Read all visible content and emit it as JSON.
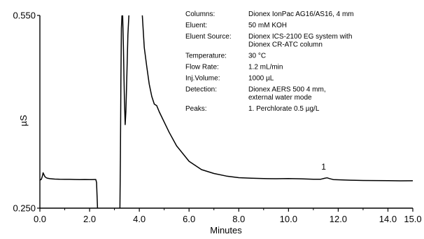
{
  "chart_data": {
    "type": "line",
    "xlabel": "Minutes",
    "ylabel": "µS",
    "xlim": [
      0.0,
      15.0
    ],
    "ylim": [
      0.25,
      0.55
    ],
    "x_ticks": [
      0.0,
      2.0,
      4.0,
      6.0,
      8.0,
      10.0,
      12.0,
      14.0,
      15.0
    ],
    "x_tick_labels": [
      "0.0",
      "2.0",
      "4.0",
      "6.0",
      "8.0",
      "10.0",
      "12.0",
      "14.0",
      "15.0"
    ],
    "y_ticks": [
      0.25,
      0.55
    ],
    "y_tick_labels": [
      "0.250",
      "0.550"
    ],
    "grid": false,
    "series": [
      {
        "color": "#000000",
        "segments": [
          {
            "x": [
              0.0,
              0.06,
              0.1,
              0.13,
              0.16,
              0.2,
              0.25,
              0.3,
              0.4,
              0.5,
              0.6,
              0.8,
              1.0,
              1.2,
              1.4,
              1.6,
              1.8,
              2.0,
              2.1,
              2.2,
              2.25,
              2.28,
              2.3,
              2.32
            ],
            "y": [
              0.2935,
              0.295,
              0.3,
              0.3051,
              0.3025,
              0.2992,
              0.2975,
              0.2966,
              0.2959,
              0.2956,
              0.2953,
              0.295,
              0.2948,
              0.2948,
              0.2946,
              0.2945,
              0.2946,
              0.2944,
              0.2945,
              0.2946,
              0.2946,
              0.29,
              0.27,
              0.25
            ]
          },
          {
            "x": [
              3.22,
              3.24,
              3.26,
              3.28,
              3.3
            ],
            "y": [
              0.25,
              0.33,
              0.45,
              0.53,
              0.55
            ]
          },
          {
            "x": [
              3.33,
              3.36,
              3.4,
              3.43,
              3.46,
              3.5,
              3.54,
              3.58
            ],
            "y": [
              0.55,
              0.5,
              0.42,
              0.38,
              0.4,
              0.46,
              0.52,
              0.55
            ]
          },
          {
            "x": [
              4.12,
              4.2,
              4.3,
              4.4,
              4.5,
              4.6,
              4.7,
              4.8,
              5.0,
              5.2,
              5.5,
              6.0,
              6.5,
              7.0,
              7.5,
              8.0,
              8.5,
              9.0,
              9.5,
              10.0,
              10.5,
              11.0,
              11.3,
              11.45,
              11.55,
              11.65,
              11.8,
              12.0,
              12.5,
              13.0,
              13.5,
              14.0,
              14.5,
              15.0
            ],
            "y": [
              0.55,
              0.5,
              0.47,
              0.443,
              0.424,
              0.412,
              0.4095,
              0.4,
              0.384,
              0.368,
              0.347,
              0.323,
              0.31,
              0.304,
              0.3,
              0.2975,
              0.2966,
              0.296,
              0.2958,
              0.2961,
              0.2957,
              0.2951,
              0.2951,
              0.2965,
              0.2972,
              0.296,
              0.2945,
              0.2942,
              0.2935,
              0.2931,
              0.293,
              0.2928,
              0.2925,
              0.2926
            ]
          }
        ]
      }
    ],
    "annotations": [
      {
        "text": "1",
        "x": 11.5,
        "y": 0.3
      }
    ],
    "info": [
      {
        "label": "Columns:",
        "lines": [
          "Dionex IonPac AG16/AS16, 4 mm"
        ]
      },
      {
        "label": "Eluent:",
        "lines": [
          "50 mM KOH"
        ]
      },
      {
        "label": "Eluent Source:",
        "lines": [
          "Dionex ICS-2100 EG system with",
          "Dionex CR-ATC column"
        ]
      },
      {
        "label": "Temperature:",
        "lines": [
          "30 °C"
        ]
      },
      {
        "label": "Flow Rate:",
        "lines": [
          "1.2 mL/min"
        ]
      },
      {
        "label": "Inj.Volume:",
        "lines": [
          "1000 µL"
        ]
      },
      {
        "label": "Detection:",
        "lines": [
          "Dionex AERS 500 4 mm,",
          "external water mode"
        ]
      },
      {
        "label": "Peaks:",
        "lines": [
          "1. Perchlorate 0.5 µg/L"
        ]
      }
    ]
  }
}
